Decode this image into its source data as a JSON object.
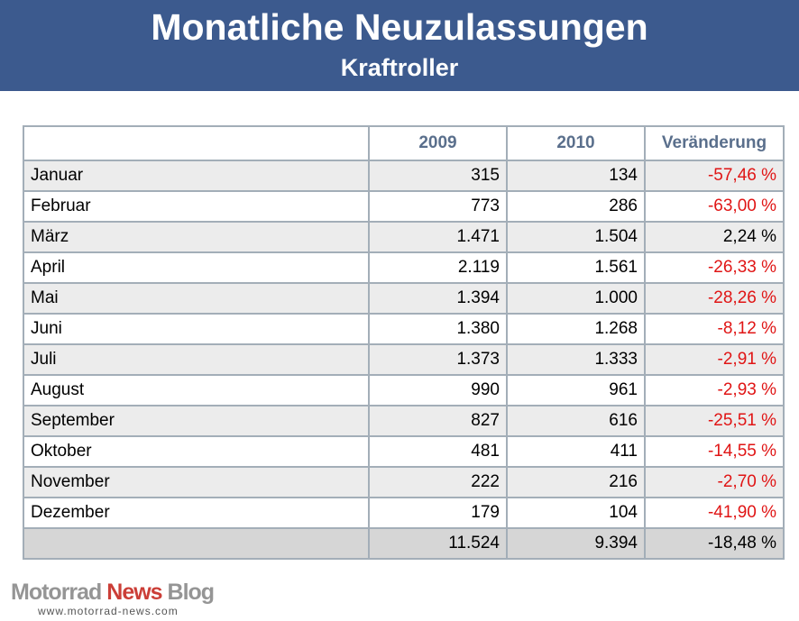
{
  "header": {
    "title": "Monatliche Neuzulassungen",
    "subtitle": "Kraftroller"
  },
  "table": {
    "columns": [
      "",
      "2009",
      "2010",
      "Veränderung"
    ],
    "rows": [
      {
        "month": "Januar",
        "y2009": "315",
        "y2010": "134",
        "change": "-57,46 %",
        "negative": true
      },
      {
        "month": "Februar",
        "y2009": "773",
        "y2010": "286",
        "change": "-63,00 %",
        "negative": true
      },
      {
        "month": "März",
        "y2009": "1.471",
        "y2010": "1.504",
        "change": "2,24 %",
        "negative": false
      },
      {
        "month": "April",
        "y2009": "2.119",
        "y2010": "1.561",
        "change": "-26,33 %",
        "negative": true
      },
      {
        "month": "Mai",
        "y2009": "1.394",
        "y2010": "1.000",
        "change": "-28,26 %",
        "negative": true
      },
      {
        "month": "Juni",
        "y2009": "1.380",
        "y2010": "1.268",
        "change": "-8,12 %",
        "negative": true
      },
      {
        "month": "Juli",
        "y2009": "1.373",
        "y2010": "1.333",
        "change": "-2,91 %",
        "negative": true
      },
      {
        "month": "August",
        "y2009": "990",
        "y2010": "961",
        "change": "-2,93 %",
        "negative": true
      },
      {
        "month": "September",
        "y2009": "827",
        "y2010": "616",
        "change": "-25,51 %",
        "negative": true
      },
      {
        "month": "Oktober",
        "y2009": "481",
        "y2010": "411",
        "change": "-14,55 %",
        "negative": true
      },
      {
        "month": "November",
        "y2009": "222",
        "y2010": "216",
        "change": "-2,70 %",
        "negative": true
      },
      {
        "month": "Dezember",
        "y2009": "179",
        "y2010": "104",
        "change": "-41,90 %",
        "negative": true
      }
    ],
    "total": {
      "month": "",
      "y2009": "11.524",
      "y2010": "9.394",
      "change": "-18,48 %"
    }
  },
  "watermark": {
    "brand_part1": "Motorrad ",
    "brand_part2": "News",
    "brand_part3": " Blog",
    "url": "www.motorrad-news.com"
  },
  "colors": {
    "header_bg": "#3c5a8e",
    "negative": "#e01515",
    "header_text": "#5a6f8c"
  }
}
